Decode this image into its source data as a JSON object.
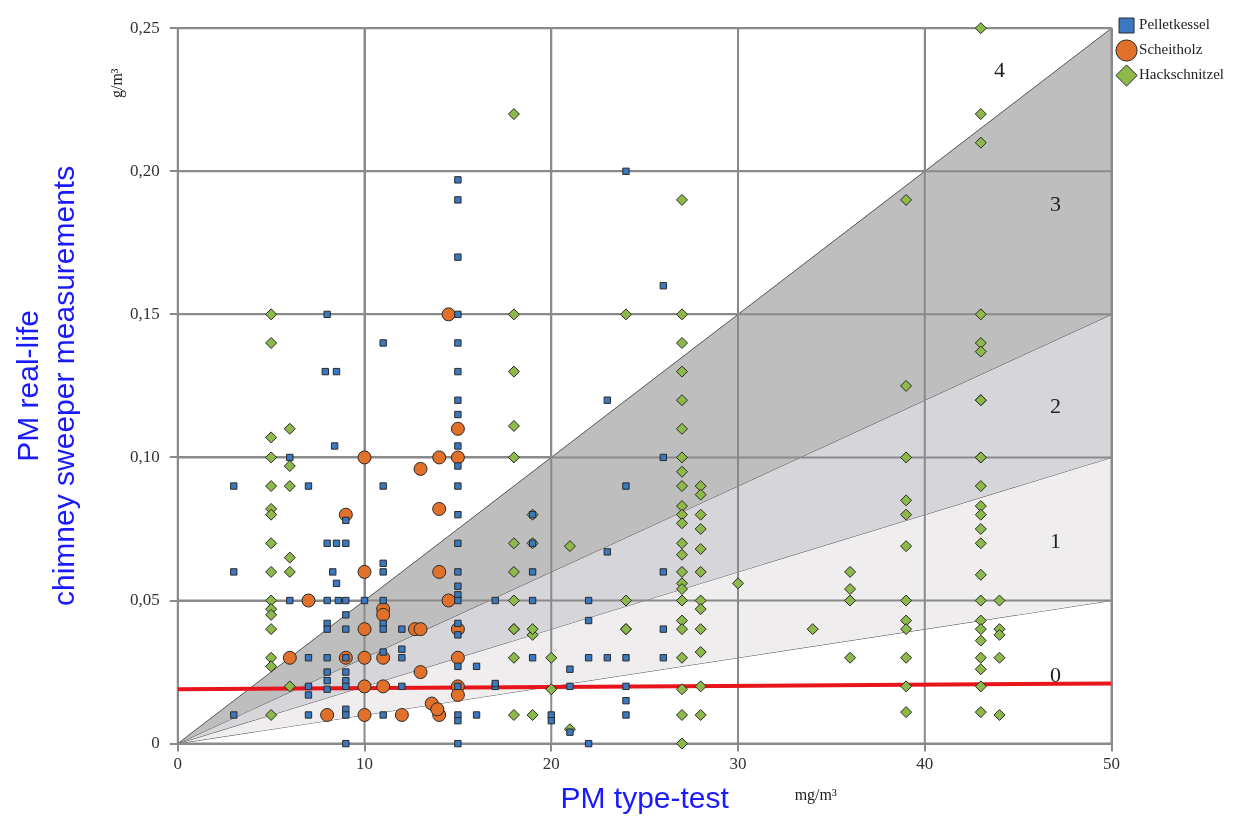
{
  "chart_data": {
    "type": "scatter",
    "xlabel": "PM type-test",
    "ylabel": "PM real-life\nchimney sweeper measurements",
    "xlim": [
      0,
      50
    ],
    "xticks": [
      0,
      10,
      20,
      30,
      40,
      50
    ],
    "ylim": [
      0,
      0.25
    ],
    "yticks": [
      {
        "value": 0,
        "label": "0"
      },
      {
        "value": 0.05,
        "label": "0,05"
      },
      {
        "value": 0.1,
        "label": "0,10"
      },
      {
        "value": 0.15,
        "label": "0,15"
      },
      {
        "value": 0.2,
        "label": "0,20"
      },
      {
        "value": 0.25,
        "label": "0,25"
      }
    ],
    "grid": true,
    "legend": "top right",
    "annotations": [
      "g/m³",
      "mg/m³",
      "4"
    ],
    "series": [
      {
        "name": "0",
        "type": "area",
        "color": "#ffffff",
        "x": [
          0,
          50
        ],
        "values": [
          0,
          0.05
        ]
      },
      {
        "name": "1",
        "type": "area",
        "color": "#efeded",
        "x": [
          0,
          50
        ],
        "values": [
          0,
          0.1
        ]
      },
      {
        "name": "2",
        "type": "area",
        "color": "#d6d6da",
        "x": [
          0,
          50
        ],
        "values": [
          0,
          0.15
        ]
      },
      {
        "name": "3",
        "type": "area",
        "color": "#bebebe",
        "x": [
          0,
          50
        ],
        "values": [
          0,
          0.25
        ]
      },
      {
        "type": "line",
        "color": "#e8141c",
        "x": [
          0,
          50
        ],
        "values": [
          0.019,
          0.021
        ]
      },
      {
        "name": "Pelletkessel",
        "marker": "square",
        "color": "#3a78c0",
        "x": [
          8,
          11,
          15,
          15,
          7.9,
          8.5,
          15,
          15,
          15,
          8.4,
          15,
          6,
          15,
          3,
          7,
          11,
          15,
          9,
          15,
          8,
          8.5,
          9,
          15,
          3,
          8.3,
          8.5,
          11,
          11,
          15,
          15,
          15,
          6,
          8,
          8.6,
          9,
          10,
          11,
          15,
          17,
          9,
          8,
          8,
          9,
          11,
          11,
          12,
          12,
          12,
          15,
          15,
          7,
          8,
          9,
          11,
          15,
          16,
          8,
          8,
          9,
          9,
          7,
          7,
          12,
          17,
          8,
          9,
          15,
          3,
          7,
          9,
          9,
          11,
          15,
          15,
          16,
          9,
          15,
          15,
          15,
          15,
          24,
          26,
          23,
          26,
          24,
          23,
          19,
          19,
          19,
          26,
          19,
          22,
          22,
          26,
          19,
          22,
          23,
          24,
          26,
          21,
          17,
          21,
          24,
          24,
          24,
          20,
          20,
          21,
          22
        ],
        "values": [
          0.15,
          0.14,
          0.15,
          0.14,
          0.13,
          0.13,
          0.13,
          0.12,
          0.115,
          0.104,
          0.104,
          0.1,
          0.097,
          0.09,
          0.09,
          0.09,
          0.09,
          0.078,
          0.08,
          0.07,
          0.07,
          0.07,
          0.07,
          0.06,
          0.06,
          0.056,
          0.063,
          0.06,
          0.06,
          0.055,
          0.052,
          0.05,
          0.05,
          0.05,
          0.05,
          0.05,
          0.05,
          0.05,
          0.05,
          0.045,
          0.042,
          0.04,
          0.04,
          0.042,
          0.04,
          0.04,
          0.033,
          0.03,
          0.042,
          0.038,
          0.03,
          0.03,
          0.03,
          0.032,
          0.027,
          0.027,
          0.025,
          0.022,
          0.025,
          0.022,
          0.02,
          0.017,
          0.02,
          0.02,
          0.019,
          0.02,
          0.02,
          0.01,
          0.01,
          0.012,
          0.01,
          0.01,
          0.01,
          0.008,
          0.01,
          0,
          0,
          0.197,
          0.19,
          0.17,
          0.2,
          0.16,
          0.12,
          0.1,
          0.09,
          0.067,
          0.08,
          0.07,
          0.06,
          0.06,
          0.05,
          0.05,
          0.043,
          0.04,
          0.03,
          0.03,
          0.03,
          0.03,
          0.03,
          0.026,
          0.021,
          0.02,
          0.02,
          0.015,
          0.01,
          0.01,
          0.008,
          0.004,
          0
        ]
      },
      {
        "name": "Scheitholz",
        "marker": "circle",
        "color": "#e0702a",
        "x": [
          14.5,
          15,
          10,
          14,
          15,
          13,
          9,
          14,
          10,
          14,
          7,
          14.5,
          11,
          11,
          10,
          12.7,
          13,
          15,
          6,
          9,
          10,
          11,
          15,
          13,
          10,
          11,
          15,
          15,
          13.6,
          8,
          10,
          12,
          14,
          13.9
        ],
        "values": [
          0.15,
          0.11,
          0.1,
          0.1,
          0.1,
          0.096,
          0.08,
          0.082,
          0.06,
          0.06,
          0.05,
          0.05,
          0.047,
          0.045,
          0.04,
          0.04,
          0.04,
          0.04,
          0.03,
          0.03,
          0.03,
          0.03,
          0.03,
          0.025,
          0.02,
          0.02,
          0.02,
          0.017,
          0.014,
          0.01,
          0.01,
          0.01,
          0.01,
          0.012
        ]
      },
      {
        "name": "Hackschnitzel",
        "marker": "diamond",
        "color": "#8db84a",
        "x": [
          5,
          5,
          6,
          5,
          5,
          6,
          5,
          6,
          5,
          5,
          5,
          6,
          5,
          6,
          5,
          5,
          5,
          5,
          5,
          5,
          6,
          5,
          18,
          18,
          24,
          27,
          27,
          18,
          18,
          18,
          18,
          19,
          18,
          19,
          21,
          18,
          18,
          24,
          18,
          19,
          19,
          24,
          18,
          20,
          20,
          18,
          19,
          21,
          27,
          27,
          27,
          27,
          27,
          27,
          27,
          27,
          27,
          27,
          27,
          27,
          27,
          27,
          27,
          27,
          27,
          27,
          27,
          27,
          27,
          27,
          28,
          28,
          28,
          28,
          28,
          28,
          28,
          28,
          28,
          28,
          28,
          28,
          30,
          24,
          34,
          36,
          36,
          36,
          36,
          39,
          39,
          39,
          39,
          39,
          39,
          39,
          39,
          39,
          39,
          39,
          43,
          43,
          43,
          43,
          43,
          43,
          43,
          43,
          43,
          43,
          43,
          43,
          43,
          43,
          43,
          43,
          43,
          43,
          44,
          44,
          44,
          44,
          44,
          43,
          43,
          43,
          43,
          43,
          43,
          39
        ],
        "values": [
          0.15,
          0.14,
          0.11,
          0.107,
          0.1,
          0.097,
          0.09,
          0.09,
          0.082,
          0.08,
          0.07,
          0.065,
          0.06,
          0.06,
          0.05,
          0.047,
          0.045,
          0.04,
          0.03,
          0.027,
          0.02,
          0.01,
          0.22,
          0.15,
          0.15,
          0.15,
          0.19,
          0.13,
          0.111,
          0.1,
          0.07,
          0.08,
          0.06,
          0.07,
          0.069,
          0.05,
          0.04,
          0.05,
          0.03,
          0.038,
          0.01,
          0.04,
          0.01,
          0.03,
          0.019,
          0.04,
          0.04,
          0.005,
          0.14,
          0.13,
          0.12,
          0.11,
          0.1,
          0.095,
          0.09,
          0.083,
          0.08,
          0.077,
          0.07,
          0.066,
          0.06,
          0.056,
          0.054,
          0.05,
          0.043,
          0.04,
          0.03,
          0.019,
          0.01,
          0,
          0.09,
          0.087,
          0.08,
          0.075,
          0.068,
          0.06,
          0.05,
          0.047,
          0.04,
          0.032,
          0.02,
          0.01,
          0.056,
          0.04,
          0.04,
          0.06,
          0.054,
          0.05,
          0.03,
          0.125,
          0.1,
          0.085,
          0.08,
          0.069,
          0.05,
          0.043,
          0.04,
          0.03,
          0.02,
          0.011,
          0.12,
          0.1,
          0.09,
          0.083,
          0.08,
          0.075,
          0.07,
          0.059,
          0.05,
          0.043,
          0.04,
          0.036,
          0.03,
          0.026,
          0.02,
          0.011,
          0.25,
          0.22,
          0.05,
          0.04,
          0.038,
          0.03,
          0.01,
          0.21,
          0.15,
          0.14,
          0.137,
          0.1,
          0.12,
          0.19
        ]
      }
    ]
  }
}
